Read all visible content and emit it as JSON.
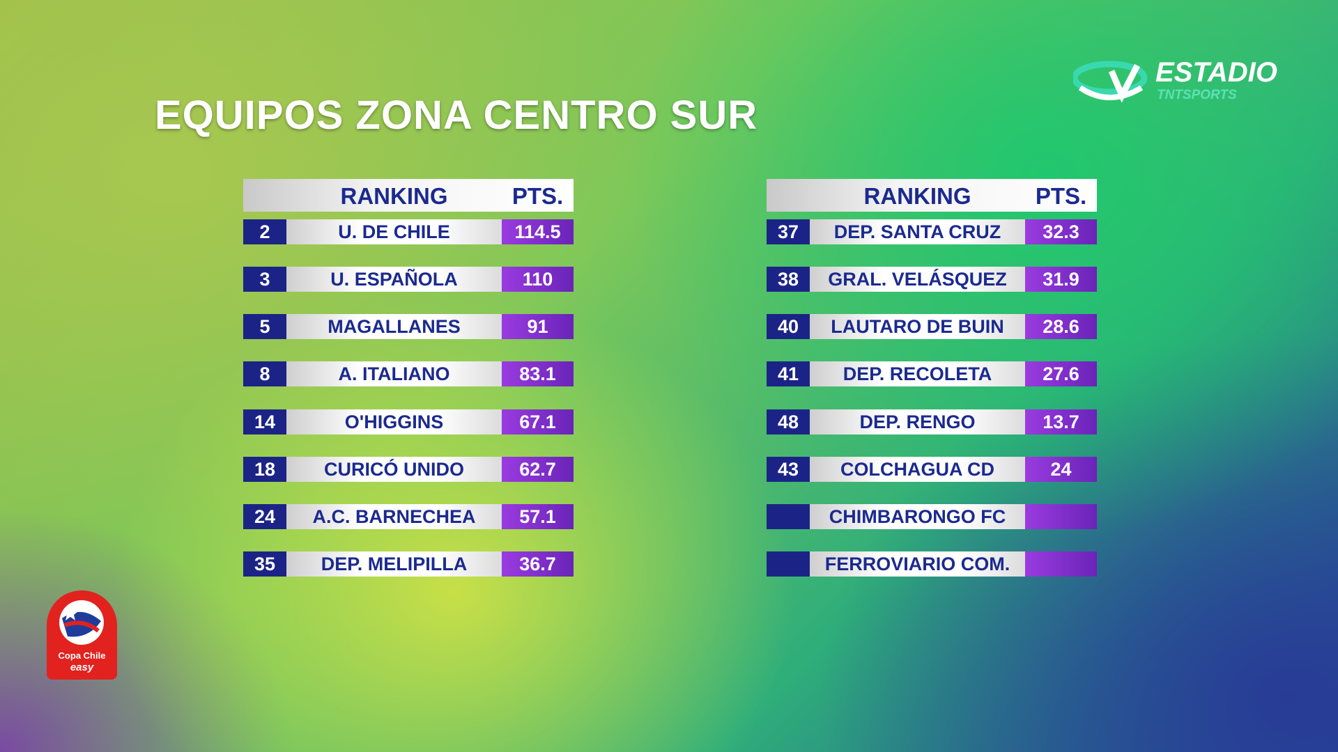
{
  "title": "EQUIPOS ZONA CENTRO SUR",
  "broadcaster": {
    "name": "ESTADIO",
    "sub": "TNTSPORTS"
  },
  "tournament_logo": {
    "name": "Copa Chile",
    "sponsor": "easy"
  },
  "tables": [
    {
      "header": {
        "ranking": "RANKING",
        "pts": "PTS."
      },
      "rows": [
        {
          "rank": 2,
          "team": "U. DE CHILE",
          "pts": 114.5
        },
        {
          "rank": 3,
          "team": "U. ESPAÑOLA",
          "pts": 110
        },
        {
          "rank": 5,
          "team": "MAGALLANES",
          "pts": 91
        },
        {
          "rank": 8,
          "team": "A. ITALIANO",
          "pts": 83.1
        },
        {
          "rank": 14,
          "team": "O'HIGGINS",
          "pts": 67.1
        },
        {
          "rank": 18,
          "team": "CURICÓ UNIDO",
          "pts": 62.7
        },
        {
          "rank": 24,
          "team": "A.C. BARNECHEA",
          "pts": 57.1
        },
        {
          "rank": 35,
          "team": "DEP. MELIPILLA",
          "pts": 36.7
        }
      ]
    },
    {
      "header": {
        "ranking": "RANKING",
        "pts": "PTS."
      },
      "rows": [
        {
          "rank": 37,
          "team": "DEP. SANTA CRUZ",
          "pts": 32.3
        },
        {
          "rank": 38,
          "team": "GRAL. VELÁSQUEZ",
          "pts": 31.9
        },
        {
          "rank": 40,
          "team": "LAUTARO DE BUIN",
          "pts": 28.6
        },
        {
          "rank": 41,
          "team": "DEP. RECOLETA",
          "pts": 27.6
        },
        {
          "rank": 48,
          "team": "DEP. RENGO",
          "pts": 13.7
        },
        {
          "rank": 43,
          "team": "COLCHAGUA CD",
          "pts": 24
        },
        {
          "team": "CHIMBARONGO FC"
        },
        {
          "team": "FERROVIARIO COM."
        }
      ]
    }
  ]
}
